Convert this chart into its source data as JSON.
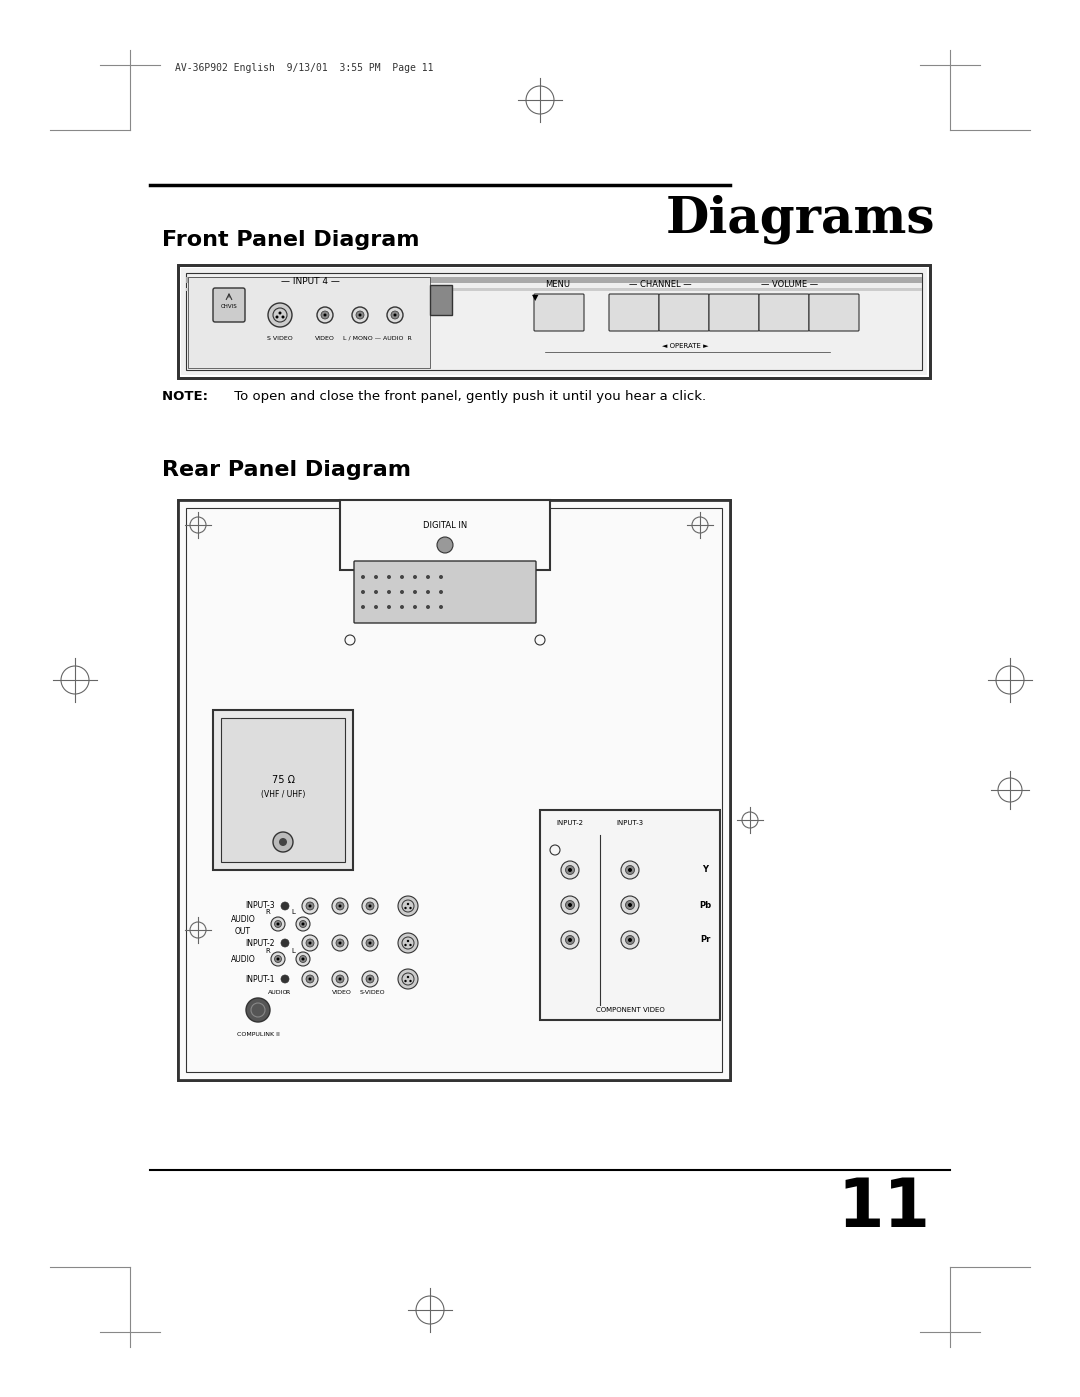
{
  "page_title": "Diagrams",
  "section1_title": "Front Panel Diagram",
  "section2_title": "Rear Panel Diagram",
  "note_text": "NOTE:  To open and close the front panel, gently push it until you hear a click.",
  "page_number": "11",
  "header_text": "AV-36P902 English  9/13/01  3:55 PM  Page 11",
  "bg_color": "#ffffff",
  "text_color": "#000000",
  "line_color": "#000000",
  "diagram_line_color": "#333333",
  "figsize": [
    10.8,
    13.97
  ],
  "dpi": 100
}
